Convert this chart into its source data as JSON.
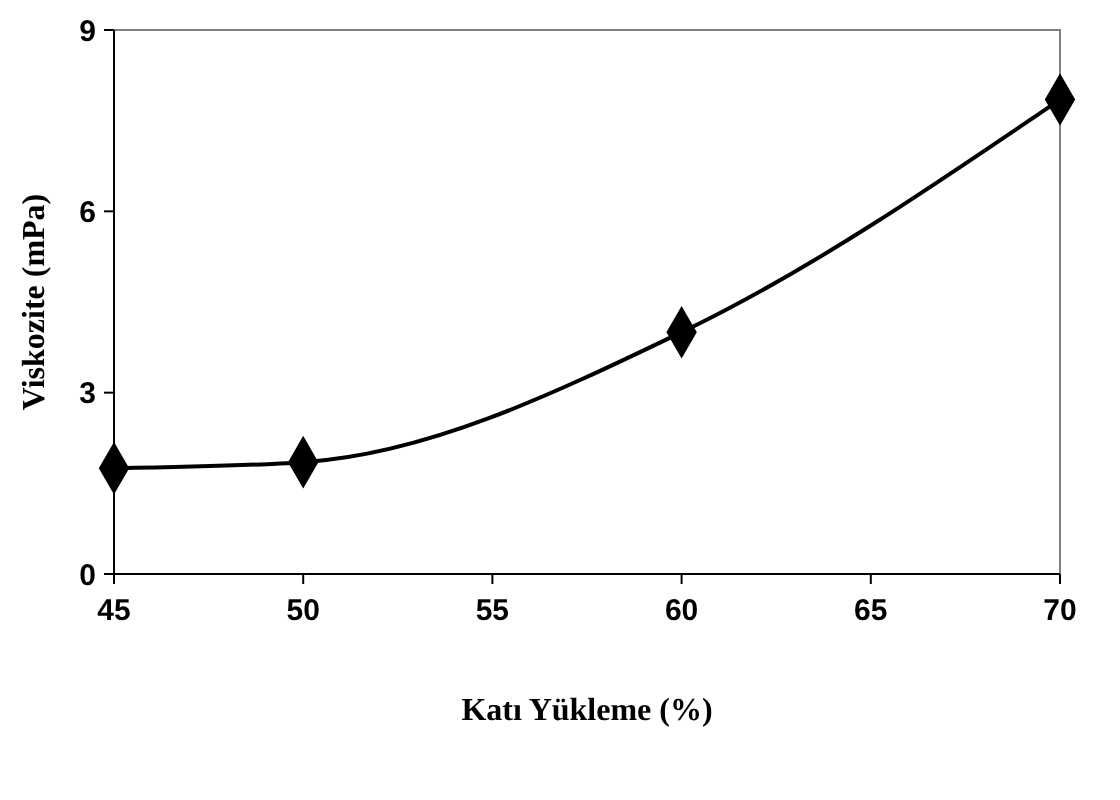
{
  "chart_data": {
    "type": "line",
    "xlabel": "Katı Yükleme (%)",
    "ylabel": "Viskozite (mPa)",
    "x": [
      45,
      50,
      60,
      70
    ],
    "series": [
      {
        "color": "#000000",
        "values": [
          1.75,
          1.85,
          4.0,
          7.85
        ]
      }
    ],
    "xlim": [
      45,
      70
    ],
    "xticks": [
      45,
      50,
      55,
      60,
      65,
      70
    ],
    "ylim": [
      0,
      9
    ],
    "yticks": [
      0,
      3,
      6,
      9
    ],
    "marker": "diamond",
    "line_style": "solid"
  }
}
